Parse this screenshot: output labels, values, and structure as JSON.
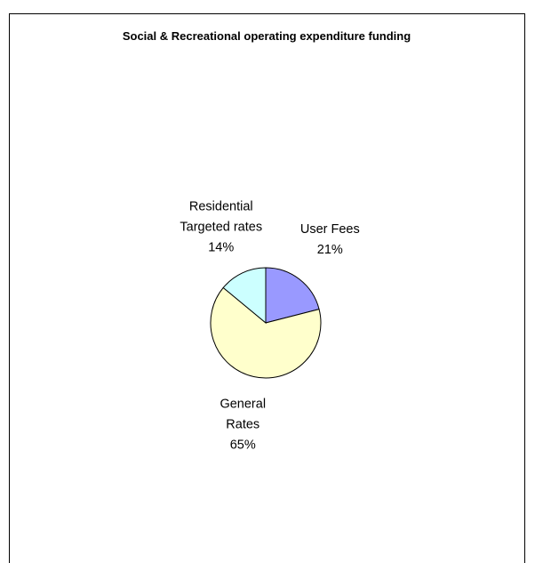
{
  "chart_data": {
    "type": "pie",
    "title": "Social & Recreational operating expenditure funding",
    "categories": [
      "User Fees",
      "General Rates",
      "Residential Targeted rates"
    ],
    "values": [
      21,
      65,
      14
    ],
    "value_labels": [
      "21%",
      "65%",
      "14%"
    ],
    "colors": [
      "#9999ff",
      "#ffffcc",
      "#ccffff"
    ]
  }
}
